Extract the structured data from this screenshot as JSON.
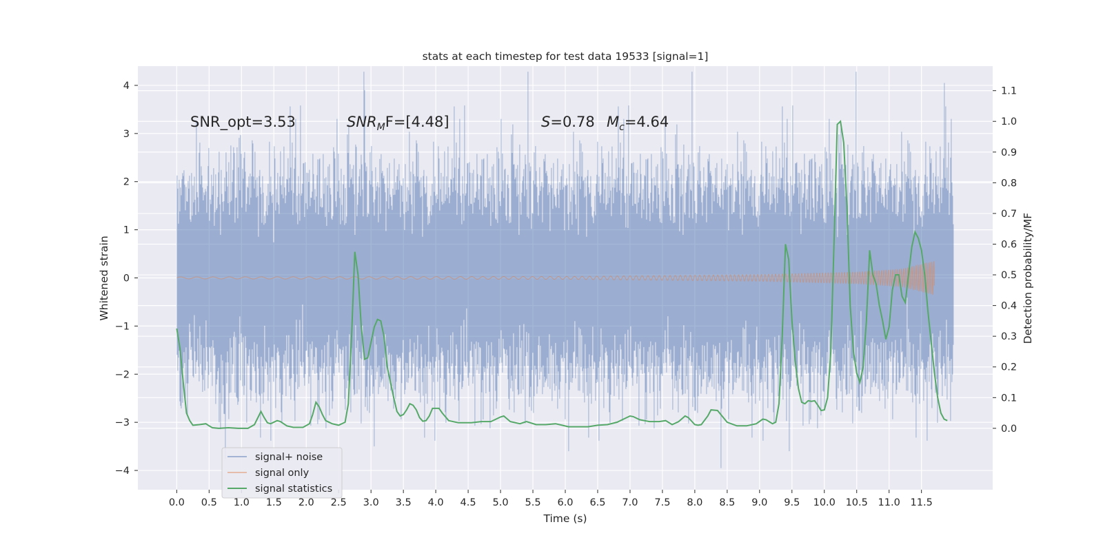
{
  "chart_data": {
    "type": "line",
    "title": "stats at each timestep for test data 19533 [signal=1]",
    "xlabel": "Time (s)",
    "ylabel_left": "Whitened strain",
    "ylabel_right": "Detection probability/MF",
    "xlim": [
      -0.6,
      12.6
    ],
    "ylim_left": [
      -4.4,
      4.4
    ],
    "ylim_right": [
      -0.2,
      1.18
    ],
    "xticks": [
      "0.0",
      "0.5",
      "1.0",
      "1.5",
      "2.0",
      "2.5",
      "3.0",
      "3.5",
      "4.0",
      "4.5",
      "5.0",
      "5.5",
      "6.0",
      "6.5",
      "7.0",
      "7.5",
      "8.0",
      "8.5",
      "9.0",
      "9.5",
      "10.0",
      "10.5",
      "11.0",
      "11.5"
    ],
    "yticks_left": [
      "4",
      "3",
      "2",
      "1",
      "0",
      "−1",
      "−2",
      "−3",
      "−4"
    ],
    "yticks_right": [
      "1.1",
      "1.0",
      "0.9",
      "0.8",
      "0.7",
      "0.6",
      "0.5",
      "0.4",
      "0.3",
      "0.2",
      "0.1",
      "0.0"
    ],
    "grid": true,
    "legend_position": "bottom-left",
    "annotations": [
      {
        "id": "snr-opt",
        "text": "SNR_opt=3.53"
      },
      {
        "id": "snr-mf",
        "base": "SNR",
        "sub": "M",
        "rest": "F=[4.48]"
      },
      {
        "id": "s",
        "base": "S",
        "rest": "=0.78"
      },
      {
        "id": "mc",
        "base": "M",
        "sub": "c",
        "rest": "=4.64"
      }
    ],
    "series": [
      {
        "name": "signal+ noise",
        "axis": "left",
        "color": "#4c72b0",
        "kind": "noise",
        "x_range": [
          0.0,
          12.0
        ],
        "sample_rate_hz": 2048,
        "approx_std": 1.0,
        "extremes": [
          {
            "x": 0.3,
            "y": 3.25
          },
          {
            "x": 2.9,
            "y": 3.9
          },
          {
            "x": 11.85,
            "y": 4.05
          },
          {
            "x": 8.4,
            "y": -3.95
          },
          {
            "x": 9.45,
            "y": -3.6
          },
          {
            "x": 6.05,
            "y": -3.6
          },
          {
            "x": 3.05,
            "y": -3.5
          }
        ]
      },
      {
        "name": "signal only",
        "axis": "left",
        "color": "#dd8452",
        "kind": "chirp",
        "x_range": [
          0.0,
          11.7
        ],
        "envelope": [
          {
            "x": 0.0,
            "amp": 0.02
          },
          {
            "x": 6.0,
            "amp": 0.03
          },
          {
            "x": 9.0,
            "amp": 0.07
          },
          {
            "x": 10.5,
            "amp": 0.12
          },
          {
            "x": 11.2,
            "amp": 0.18
          },
          {
            "x": 11.7,
            "amp": 0.35
          }
        ]
      },
      {
        "name": "signal statistics",
        "axis": "right",
        "color": "#55a868",
        "kind": "line",
        "points": [
          [
            0.0,
            0.325
          ],
          [
            0.05,
            0.26
          ],
          [
            0.1,
            0.15
          ],
          [
            0.15,
            0.05
          ],
          [
            0.2,
            0.025
          ],
          [
            0.25,
            0.01
          ],
          [
            0.35,
            0.012
          ],
          [
            0.45,
            0.015
          ],
          [
            0.5,
            0.008
          ],
          [
            0.55,
            0.002
          ],
          [
            0.65,
            0.0
          ],
          [
            0.8,
            0.002
          ],
          [
            0.95,
            0.0
          ],
          [
            1.1,
            0.0
          ],
          [
            1.2,
            0.012
          ],
          [
            1.3,
            0.055
          ],
          [
            1.35,
            0.035
          ],
          [
            1.4,
            0.018
          ],
          [
            1.45,
            0.015
          ],
          [
            1.55,
            0.025
          ],
          [
            1.6,
            0.022
          ],
          [
            1.7,
            0.008
          ],
          [
            1.8,
            0.003
          ],
          [
            1.95,
            0.003
          ],
          [
            2.05,
            0.015
          ],
          [
            2.1,
            0.045
          ],
          [
            2.15,
            0.085
          ],
          [
            2.2,
            0.07
          ],
          [
            2.25,
            0.045
          ],
          [
            2.3,
            0.025
          ],
          [
            2.4,
            0.015
          ],
          [
            2.5,
            0.01
          ],
          [
            2.6,
            0.02
          ],
          [
            2.65,
            0.08
          ],
          [
            2.7,
            0.3
          ],
          [
            2.75,
            0.575
          ],
          [
            2.8,
            0.5
          ],
          [
            2.85,
            0.33
          ],
          [
            2.9,
            0.225
          ],
          [
            2.95,
            0.23
          ],
          [
            3.0,
            0.28
          ],
          [
            3.05,
            0.33
          ],
          [
            3.1,
            0.355
          ],
          [
            3.15,
            0.35
          ],
          [
            3.2,
            0.3
          ],
          [
            3.25,
            0.2
          ],
          [
            3.35,
            0.1
          ],
          [
            3.4,
            0.055
          ],
          [
            3.45,
            0.04
          ],
          [
            3.5,
            0.045
          ],
          [
            3.55,
            0.06
          ],
          [
            3.6,
            0.08
          ],
          [
            3.65,
            0.075
          ],
          [
            3.7,
            0.06
          ],
          [
            3.75,
            0.035
          ],
          [
            3.8,
            0.023
          ],
          [
            3.85,
            0.025
          ],
          [
            3.9,
            0.04
          ],
          [
            3.95,
            0.065
          ],
          [
            4.05,
            0.065
          ],
          [
            4.1,
            0.05
          ],
          [
            4.2,
            0.025
          ],
          [
            4.35,
            0.018
          ],
          [
            4.55,
            0.018
          ],
          [
            4.7,
            0.022
          ],
          [
            4.85,
            0.022
          ],
          [
            5.0,
            0.037
          ],
          [
            5.05,
            0.04
          ],
          [
            5.15,
            0.022
          ],
          [
            5.3,
            0.015
          ],
          [
            5.4,
            0.022
          ],
          [
            5.55,
            0.012
          ],
          [
            5.7,
            0.012
          ],
          [
            5.85,
            0.015
          ],
          [
            5.95,
            0.01
          ],
          [
            6.05,
            0.005
          ],
          [
            6.2,
            0.005
          ],
          [
            6.35,
            0.005
          ],
          [
            6.5,
            0.01
          ],
          [
            6.65,
            0.012
          ],
          [
            6.8,
            0.02
          ],
          [
            6.9,
            0.03
          ],
          [
            7.0,
            0.04
          ],
          [
            7.05,
            0.038
          ],
          [
            7.15,
            0.028
          ],
          [
            7.3,
            0.022
          ],
          [
            7.45,
            0.022
          ],
          [
            7.55,
            0.025
          ],
          [
            7.65,
            0.012
          ],
          [
            7.75,
            0.022
          ],
          [
            7.85,
            0.04
          ],
          [
            7.9,
            0.035
          ],
          [
            8.0,
            0.012
          ],
          [
            8.05,
            0.01
          ],
          [
            8.1,
            0.012
          ],
          [
            8.2,
            0.04
          ],
          [
            8.25,
            0.06
          ],
          [
            8.35,
            0.058
          ],
          [
            8.5,
            0.02
          ],
          [
            8.65,
            0.008
          ],
          [
            8.8,
            0.008
          ],
          [
            8.95,
            0.015
          ],
          [
            9.05,
            0.03
          ],
          [
            9.1,
            0.028
          ],
          [
            9.2,
            0.015
          ],
          [
            9.25,
            0.02
          ],
          [
            9.3,
            0.08
          ],
          [
            9.35,
            0.3
          ],
          [
            9.4,
            0.6
          ],
          [
            9.45,
            0.55
          ],
          [
            9.5,
            0.35
          ],
          [
            9.55,
            0.22
          ],
          [
            9.6,
            0.13
          ],
          [
            9.65,
            0.085
          ],
          [
            9.7,
            0.08
          ],
          [
            9.75,
            0.09
          ],
          [
            9.8,
            0.088
          ],
          [
            9.85,
            0.09
          ],
          [
            9.9,
            0.075
          ],
          [
            9.95,
            0.058
          ],
          [
            10.0,
            0.06
          ],
          [
            10.05,
            0.1
          ],
          [
            10.1,
            0.25
          ],
          [
            10.15,
            0.6
          ],
          [
            10.2,
            0.99
          ],
          [
            10.25,
            1.0
          ],
          [
            10.3,
            0.93
          ],
          [
            10.35,
            0.72
          ],
          [
            10.4,
            0.4
          ],
          [
            10.45,
            0.25
          ],
          [
            10.5,
            0.18
          ],
          [
            10.55,
            0.15
          ],
          [
            10.6,
            0.2
          ],
          [
            10.65,
            0.35
          ],
          [
            10.7,
            0.58
          ],
          [
            10.75,
            0.5
          ],
          [
            10.8,
            0.47
          ],
          [
            10.85,
            0.4
          ],
          [
            10.9,
            0.35
          ],
          [
            10.95,
            0.29
          ],
          [
            11.0,
            0.33
          ],
          [
            11.05,
            0.45
          ],
          [
            11.1,
            0.5
          ],
          [
            11.15,
            0.5
          ],
          [
            11.2,
            0.43
          ],
          [
            11.25,
            0.41
          ],
          [
            11.3,
            0.5
          ],
          [
            11.35,
            0.59
          ],
          [
            11.4,
            0.64
          ],
          [
            11.45,
            0.62
          ],
          [
            11.5,
            0.58
          ],
          [
            11.55,
            0.5
          ],
          [
            11.6,
            0.38
          ],
          [
            11.65,
            0.28
          ],
          [
            11.7,
            0.18
          ],
          [
            11.75,
            0.1
          ],
          [
            11.8,
            0.05
          ],
          [
            11.85,
            0.03
          ],
          [
            11.9,
            0.025
          ]
        ]
      }
    ]
  }
}
